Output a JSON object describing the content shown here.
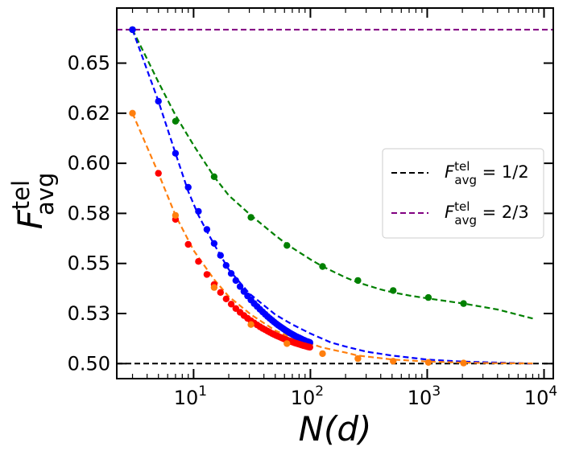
{
  "chart_data": {
    "type": "line",
    "x_scale": "log",
    "xlim": [
      2.2,
      12000
    ],
    "ylim": [
      0.4925,
      0.6775
    ],
    "xlabel": "N(d)",
    "ylabel": "F_avg^tel",
    "ylabel_main": "F",
    "ylabel_sup": "tel",
    "ylabel_sub": "avg",
    "x_ticks": [
      {
        "value": 10,
        "base": "10",
        "exp": "1"
      },
      {
        "value": 100,
        "base": "10",
        "exp": "2"
      },
      {
        "value": 1000,
        "base": "10",
        "exp": "3"
      },
      {
        "value": 10000,
        "base": "10",
        "exp": "4"
      }
    ],
    "y_ticks": [
      {
        "value": 0.5,
        "label": "0.50"
      },
      {
        "value": 0.525,
        "label": "0.53"
      },
      {
        "value": 0.55,
        "label": "0.55"
      },
      {
        "value": 0.575,
        "label": "0.58"
      },
      {
        "value": 0.6,
        "label": "0.60"
      },
      {
        "value": 0.625,
        "label": "0.62"
      },
      {
        "value": 0.65,
        "label": "0.65"
      }
    ],
    "reference_lines": [
      {
        "y": 0.5,
        "color": "#000000",
        "legend_main": "F",
        "legend_sup": "tel",
        "legend_sub": "avg",
        "legend_rhs": " = 1/2"
      },
      {
        "y": 0.6667,
        "color": "#800080",
        "legend_main": "F",
        "legend_sup": "tel",
        "legend_sub": "avg",
        "legend_rhs": " = 2/3"
      }
    ],
    "legend_position": "center-right",
    "series": [
      {
        "name": "green",
        "color": "#008000",
        "dashed_curve": true,
        "curve_x": [
          3,
          4,
          5,
          7,
          10,
          15,
          20,
          31,
          50,
          63,
          100,
          127,
          200,
          255,
          400,
          511,
          700,
          1023,
          2047,
          4000,
          8000
        ],
        "curve_y": [
          0.6667,
          0.652,
          0.6405,
          0.624,
          0.609,
          0.5933,
          0.584,
          0.574,
          0.564,
          0.5595,
          0.552,
          0.5485,
          0.543,
          0.5405,
          0.537,
          0.5355,
          0.534,
          0.5325,
          0.53,
          0.527,
          0.5225
        ],
        "points_x": [
          3,
          7,
          15,
          31,
          63,
          127,
          255,
          511,
          1023,
          2047
        ],
        "points_y": [
          0.6667,
          0.621,
          0.5933,
          0.573,
          0.559,
          0.5485,
          0.5415,
          0.5365,
          0.533,
          0.53
        ]
      },
      {
        "name": "blue",
        "color": "#0000ff",
        "dashed_curve": true,
        "curve_x": [
          3,
          5,
          7,
          9,
          11,
          13,
          15,
          20,
          30,
          50,
          70,
          100,
          150,
          200,
          300,
          500,
          1000,
          2000,
          8000
        ],
        "curve_y": [
          0.6667,
          0.631,
          0.605,
          0.586,
          0.574,
          0.566,
          0.5595,
          0.547,
          0.535,
          0.5245,
          0.5195,
          0.515,
          0.5105,
          0.5085,
          0.506,
          0.504,
          0.502,
          0.501,
          0.5
        ],
        "points_x": [
          3,
          5,
          7,
          9,
          11,
          13,
          15,
          17,
          19,
          21,
          23,
          25,
          27,
          29,
          31,
          33,
          35,
          37,
          39,
          41,
          43,
          45,
          47,
          49,
          51,
          53,
          55,
          57,
          59,
          61,
          63,
          65,
          67,
          69,
          71,
          73,
          75,
          77,
          79,
          81,
          83,
          85,
          87,
          89,
          91,
          93,
          95,
          97,
          99
        ],
        "points_y": [
          0.6667,
          0.631,
          0.605,
          0.588,
          0.576,
          0.567,
          0.56,
          0.554,
          0.549,
          0.545,
          0.5415,
          0.5385,
          0.536,
          0.5338,
          0.5318,
          0.53,
          0.5285,
          0.5271,
          0.5258,
          0.5246,
          0.5235,
          0.5225,
          0.5216,
          0.5207,
          0.5199,
          0.5192,
          0.5185,
          0.5179,
          0.5173,
          0.5167,
          0.5162,
          0.5157,
          0.5152,
          0.5148,
          0.5144,
          0.514,
          0.5136,
          0.5133,
          0.513,
          0.5127,
          0.5124,
          0.5121,
          0.5118,
          0.5116,
          0.5113,
          0.5111,
          0.5109,
          0.5107,
          0.5105
        ]
      },
      {
        "name": "red",
        "color": "#ff0000",
        "dashed_curve": false,
        "curve_x": [],
        "curve_y": [],
        "points_x": [
          5,
          7,
          9,
          11,
          13,
          15,
          17,
          19,
          21,
          23,
          25,
          27,
          29,
          31,
          33,
          35,
          37,
          39,
          41,
          43,
          45,
          47,
          49,
          51,
          53,
          55,
          57,
          59,
          61,
          63,
          65,
          67,
          69,
          71,
          73,
          75,
          77,
          79,
          81,
          83,
          85,
          87,
          89,
          91,
          93,
          95,
          97,
          99
        ],
        "points_y": [
          0.595,
          0.572,
          0.5595,
          0.551,
          0.5445,
          0.5395,
          0.5355,
          0.5323,
          0.5297,
          0.5275,
          0.5256,
          0.524,
          0.5226,
          0.5214,
          0.5203,
          0.5193,
          0.5184,
          0.5176,
          0.5169,
          0.5162,
          0.5156,
          0.515,
          0.5145,
          0.514,
          0.5136,
          0.5132,
          0.5128,
          0.5124,
          0.5121,
          0.5118,
          0.5115,
          0.5112,
          0.5109,
          0.5107,
          0.5104,
          0.5102,
          0.51,
          0.5098,
          0.5096,
          0.5094,
          0.5092,
          0.509,
          0.5089,
          0.5087,
          0.5086,
          0.5084,
          0.5083,
          0.5082
        ]
      },
      {
        "name": "orange",
        "color": "#ff7f0e",
        "dashed_curve": true,
        "curve_x": [
          3,
          5,
          7,
          10,
          15,
          20,
          31,
          50,
          63,
          100,
          127,
          200,
          255,
          511,
          1023,
          2047,
          4000,
          8000
        ],
        "curve_y": [
          0.625,
          0.595,
          0.574,
          0.5565,
          0.542,
          0.5335,
          0.5245,
          0.5165,
          0.514,
          0.51,
          0.508,
          0.5055,
          0.504,
          0.502,
          0.501,
          0.5005,
          0.5002,
          0.5001
        ],
        "points_x": [
          3,
          7,
          15,
          31,
          63,
          127,
          255,
          511,
          1023,
          2047
        ],
        "points_y": [
          0.625,
          0.574,
          0.538,
          0.5195,
          0.51,
          0.505,
          0.5025,
          0.5012,
          0.5006,
          0.5003
        ]
      }
    ]
  }
}
